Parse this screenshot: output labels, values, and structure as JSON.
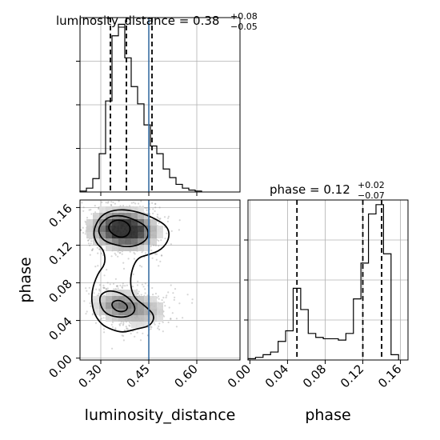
{
  "chart_data": [
    {
      "type": "histogram",
      "title": {
        "main": "luminosity_distance = 0.38",
        "sup": "+0.08",
        "sub": "−0.05"
      },
      "x_range": [
        0.235,
        0.735
      ],
      "grid": true,
      "bins": [
        {
          "x0": 0.235,
          "x1": 0.255,
          "count": 1
        },
        {
          "x0": 0.255,
          "x1": 0.275,
          "count": 4
        },
        {
          "x0": 0.275,
          "x1": 0.295,
          "count": 14
        },
        {
          "x0": 0.295,
          "x1": 0.315,
          "count": 40
        },
        {
          "x0": 0.315,
          "x1": 0.335,
          "count": 95
        },
        {
          "x0": 0.335,
          "x1": 0.355,
          "count": 163
        },
        {
          "x0": 0.355,
          "x1": 0.375,
          "count": 175
        },
        {
          "x0": 0.375,
          "x1": 0.395,
          "count": 140
        },
        {
          "x0": 0.395,
          "x1": 0.415,
          "count": 110
        },
        {
          "x0": 0.415,
          "x1": 0.435,
          "count": 92
        },
        {
          "x0": 0.435,
          "x1": 0.455,
          "count": 70
        },
        {
          "x0": 0.455,
          "x1": 0.475,
          "count": 48
        },
        {
          "x0": 0.475,
          "x1": 0.495,
          "count": 40
        },
        {
          "x0": 0.495,
          "x1": 0.515,
          "count": 24
        },
        {
          "x0": 0.515,
          "x1": 0.535,
          "count": 15
        },
        {
          "x0": 0.535,
          "x1": 0.555,
          "count": 8
        },
        {
          "x0": 0.555,
          "x1": 0.575,
          "count": 4
        },
        {
          "x0": 0.575,
          "x1": 0.595,
          "count": 2
        },
        {
          "x0": 0.595,
          "x1": 0.615,
          "count": 1
        }
      ],
      "quantiles": [
        0.33,
        0.38,
        0.46
      ],
      "truth": 0.45
    },
    {
      "type": "histogram",
      "title": {
        "main": "phase = 0.12",
        "sup": "+0.02",
        "sub": "−0.07"
      },
      "x_range": [
        -0.002,
        0.168
      ],
      "grid": true,
      "bins": [
        {
          "x0": -0.002,
          "x1": 0.006,
          "count": 1
        },
        {
          "x0": 0.006,
          "x1": 0.014,
          "count": 2
        },
        {
          "x0": 0.014,
          "x1": 0.022,
          "count": 4
        },
        {
          "x0": 0.022,
          "x1": 0.03,
          "count": 6
        },
        {
          "x0": 0.03,
          "x1": 0.038,
          "count": 14
        },
        {
          "x0": 0.038,
          "x1": 0.046,
          "count": 22
        },
        {
          "x0": 0.046,
          "x1": 0.054,
          "count": 54
        },
        {
          "x0": 0.054,
          "x1": 0.062,
          "count": 38
        },
        {
          "x0": 0.062,
          "x1": 0.07,
          "count": 20
        },
        {
          "x0": 0.07,
          "x1": 0.078,
          "count": 17
        },
        {
          "x0": 0.078,
          "x1": 0.086,
          "count": 16
        },
        {
          "x0": 0.086,
          "x1": 0.094,
          "count": 16
        },
        {
          "x0": 0.094,
          "x1": 0.102,
          "count": 15
        },
        {
          "x0": 0.102,
          "x1": 0.11,
          "count": 20
        },
        {
          "x0": 0.11,
          "x1": 0.118,
          "count": 46
        },
        {
          "x0": 0.118,
          "x1": 0.126,
          "count": 73
        },
        {
          "x0": 0.126,
          "x1": 0.134,
          "count": 110
        },
        {
          "x0": 0.134,
          "x1": 0.142,
          "count": 117
        },
        {
          "x0": 0.142,
          "x1": 0.15,
          "count": 80
        },
        {
          "x0": 0.15,
          "x1": 0.158,
          "count": 4
        }
      ],
      "quantiles": [
        0.05,
        0.12,
        0.14
      ],
      "xticks": [
        "0.00",
        "0.04",
        "0.08",
        "0.12",
        "0.16"
      ],
      "xlabel": "phase"
    },
    {
      "type": "contour",
      "x_range": [
        0.235,
        0.735
      ],
      "y_range": [
        -0.002,
        0.168
      ],
      "xticks": [
        "0.30",
        "0.45",
        "0.60"
      ],
      "yticks": [
        "0.00",
        "0.04",
        "0.08",
        "0.12",
        "0.16"
      ],
      "xlabel": "luminosity_distance",
      "ylabel": "phase",
      "truth_x": 0.45,
      "density_blobs": [
        {
          "x": 0.36,
          "y": 0.138,
          "sx": 0.055,
          "sy": 0.011,
          "w": 1.0
        },
        {
          "x": 0.4,
          "y": 0.133,
          "sx": 0.045,
          "sy": 0.01,
          "w": 0.55
        },
        {
          "x": 0.355,
          "y": 0.056,
          "sx": 0.045,
          "sy": 0.009,
          "w": 0.55
        },
        {
          "x": 0.43,
          "y": 0.05,
          "sx": 0.05,
          "sy": 0.01,
          "w": 0.35
        }
      ],
      "contours": [
        [
          [
            0.275,
            0.135
          ],
          [
            0.3,
            0.152
          ],
          [
            0.345,
            0.158
          ],
          [
            0.4,
            0.157
          ],
          [
            0.46,
            0.15
          ],
          [
            0.51,
            0.14
          ],
          [
            0.515,
            0.127
          ],
          [
            0.49,
            0.115
          ],
          [
            0.45,
            0.11
          ],
          [
            0.41,
            0.106
          ],
          [
            0.39,
            0.085
          ],
          [
            0.4,
            0.065
          ],
          [
            0.44,
            0.055
          ],
          [
            0.47,
            0.045
          ],
          [
            0.455,
            0.034
          ],
          [
            0.41,
            0.031
          ],
          [
            0.37,
            0.027
          ],
          [
            0.335,
            0.03
          ],
          [
            0.3,
            0.036
          ],
          [
            0.275,
            0.05
          ],
          [
            0.27,
            0.07
          ],
          [
            0.29,
            0.09
          ],
          [
            0.315,
            0.1
          ],
          [
            0.31,
            0.115
          ],
          [
            0.285,
            0.122
          ]
        ],
        [
          [
            0.29,
            0.138
          ],
          [
            0.32,
            0.15
          ],
          [
            0.36,
            0.152
          ],
          [
            0.4,
            0.148
          ],
          [
            0.445,
            0.14
          ],
          [
            0.45,
            0.128
          ],
          [
            0.42,
            0.12
          ],
          [
            0.38,
            0.118
          ],
          [
            0.35,
            0.12
          ],
          [
            0.32,
            0.123
          ],
          [
            0.3,
            0.128
          ]
        ],
        [
          [
            0.295,
            0.066
          ],
          [
            0.32,
            0.072
          ],
          [
            0.36,
            0.07
          ],
          [
            0.395,
            0.062
          ],
          [
            0.41,
            0.052
          ],
          [
            0.395,
            0.045
          ],
          [
            0.36,
            0.043
          ],
          [
            0.32,
            0.046
          ],
          [
            0.3,
            0.054
          ]
        ],
        [
          [
            0.325,
            0.142
          ],
          [
            0.345,
            0.147
          ],
          [
            0.375,
            0.146
          ],
          [
            0.395,
            0.139
          ],
          [
            0.385,
            0.13
          ],
          [
            0.36,
            0.128
          ],
          [
            0.34,
            0.131
          ],
          [
            0.325,
            0.136
          ]
        ],
        [
          [
            0.335,
            0.06
          ],
          [
            0.36,
            0.062
          ],
          [
            0.385,
            0.056
          ],
          [
            0.38,
            0.05
          ],
          [
            0.355,
            0.049
          ],
          [
            0.335,
            0.054
          ]
        ]
      ]
    }
  ]
}
